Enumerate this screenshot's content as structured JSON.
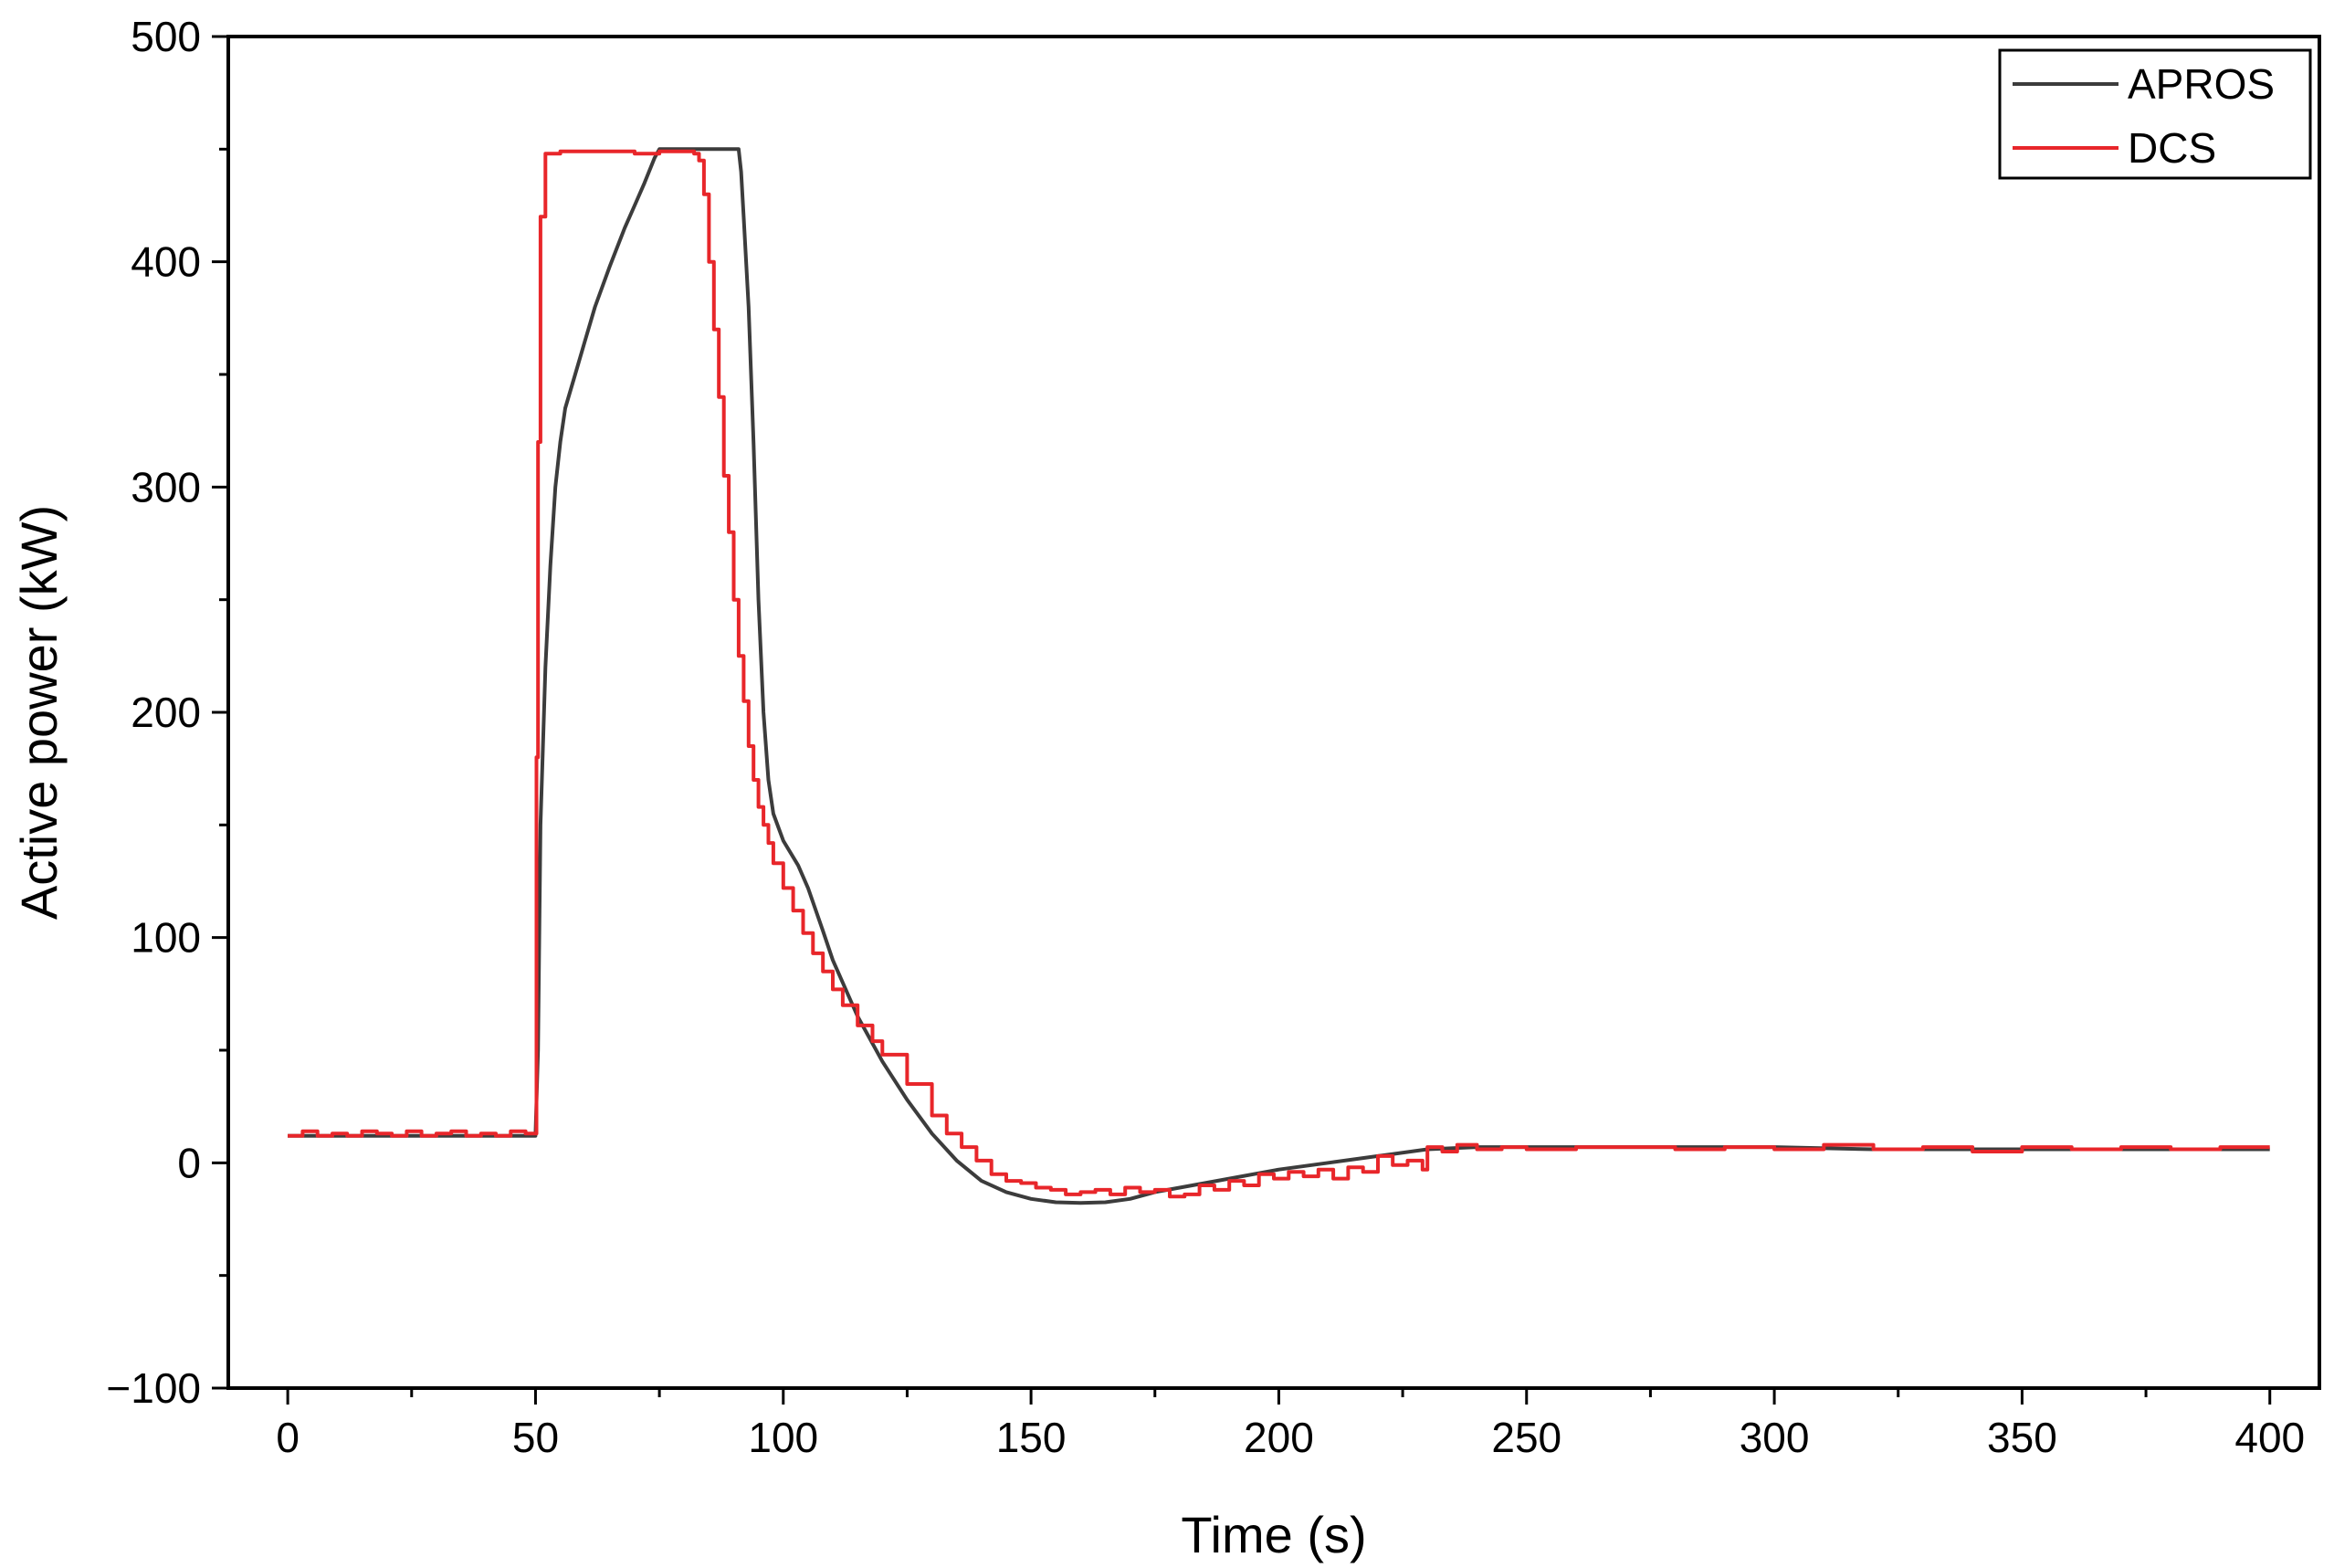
{
  "chart_data": {
    "type": "line",
    "xlabel": "Time (s)",
    "ylabel": "Active power (kW)",
    "xlim": [
      -12,
      410
    ],
    "ylim": [
      -100,
      500
    ],
    "xticks": [
      0,
      50,
      100,
      150,
      200,
      250,
      300,
      350,
      400
    ],
    "xtick_labels": [
      "0",
      "50",
      "100",
      "150",
      "200",
      "250",
      "300",
      "350",
      "400"
    ],
    "yticks": [
      -100,
      0,
      100,
      200,
      300,
      400,
      500
    ],
    "ytick_labels": [
      "−100",
      "0",
      "100",
      "200",
      "300",
      "400",
      "500"
    ],
    "grid": false,
    "legend_position": "top-right",
    "series": [
      {
        "name": "APROS",
        "color": "#3c3c3c",
        "x": [
          0,
          50,
          50.5,
          51,
          52,
          53,
          54,
          55,
          56,
          58,
          60,
          62,
          65,
          68,
          70,
          72,
          74,
          75,
          80,
          85,
          88,
          91,
          91.5,
          92,
          93,
          94,
          95,
          96,
          97,
          98,
          100,
          103,
          105,
          108,
          110,
          115,
          120,
          125,
          130,
          135,
          140,
          145,
          150,
          155,
          160,
          165,
          170,
          175,
          180,
          190,
          200,
          210,
          220,
          230,
          240,
          250,
          260,
          270,
          280,
          300,
          320,
          350,
          380,
          400
        ],
        "y": [
          12,
          12,
          50,
          150,
          220,
          265,
          300,
          320,
          335,
          350,
          365,
          380,
          398,
          415,
          425,
          435,
          446,
          450,
          450,
          450,
          450,
          450,
          440,
          420,
          380,
          320,
          250,
          200,
          170,
          155,
          143,
          132,
          122,
          103,
          90,
          65,
          45,
          28,
          13,
          1,
          -8,
          -13,
          -16,
          -17.5,
          -17.8,
          -17.5,
          -16,
          -13,
          -11,
          -7,
          -3,
          0,
          3,
          6,
          7,
          7,
          7,
          7,
          7,
          7,
          6,
          6,
          6,
          6
        ]
      },
      {
        "name": "DCS",
        "color": "#e8262a",
        "x": [
          0,
          3,
          6,
          9,
          12,
          15,
          18,
          21,
          24,
          27,
          30,
          33,
          36,
          39,
          42,
          45,
          48,
          50,
          50.2,
          50.5,
          51,
          52,
          55,
          60,
          65,
          70,
          75,
          80,
          82,
          83,
          84,
          85,
          86,
          87,
          88,
          89,
          90,
          91,
          92,
          93,
          94,
          95,
          96,
          97,
          98,
          100,
          102,
          104,
          106,
          108,
          110,
          112,
          115,
          118,
          120,
          125,
          130,
          133,
          136,
          139,
          142,
          145,
          148,
          151,
          154,
          157,
          160,
          163,
          166,
          169,
          172,
          175,
          178,
          181,
          184,
          187,
          190,
          193,
          196,
          199,
          202,
          205,
          208,
          211,
          214,
          217,
          220,
          223,
          226,
          229,
          230,
          233,
          236,
          240,
          245,
          250,
          260,
          270,
          280,
          290,
          300,
          310,
          320,
          330,
          340,
          350,
          360,
          370,
          380,
          390,
          400
        ],
        "y": [
          12,
          14,
          12,
          13,
          12,
          14,
          13,
          12,
          14,
          12,
          13,
          14,
          12,
          13,
          12,
          14,
          13,
          13,
          180,
          320,
          420,
          448,
          449,
          449,
          449,
          448,
          449,
          449,
          448,
          445,
          430,
          400,
          370,
          340,
          305,
          280,
          250,
          225,
          205,
          185,
          170,
          158,
          150,
          142,
          133,
          122,
          112,
          102,
          93,
          85,
          77,
          70,
          61,
          54,
          48,
          35,
          21,
          13,
          7,
          1,
          -5,
          -8,
          -9,
          -11,
          -12,
          -14,
          -13,
          -12,
          -14,
          -11,
          -13,
          -12,
          -15,
          -14,
          -10,
          -12,
          -8,
          -10,
          -5,
          -7,
          -4,
          -6,
          -3,
          -7,
          -2,
          -4,
          3,
          -1,
          1,
          -3,
          7,
          5,
          8,
          6,
          7,
          6,
          7,
          7,
          6,
          7,
          6,
          8,
          6,
          7,
          5,
          7,
          6,
          7,
          6,
          7,
          7
        ]
      }
    ]
  }
}
